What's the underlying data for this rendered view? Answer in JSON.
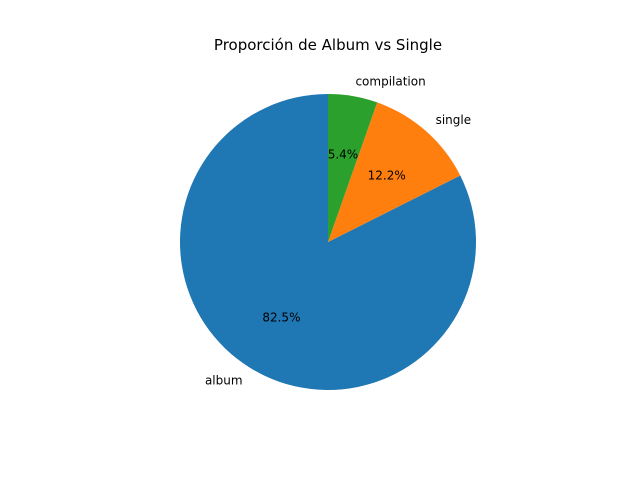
{
  "chart_data": {
    "type": "pie",
    "title": "Proporción de Album vs Single",
    "start_angle": 90,
    "direction": "counterclockwise",
    "slices": [
      {
        "label": "album",
        "value": 82.5,
        "pct_label": "82.5%",
        "color": "#1f77b4"
      },
      {
        "label": "single",
        "value": 12.2,
        "pct_label": "12.2%",
        "color": "#ff7f0e"
      },
      {
        "label": "compilation",
        "value": 5.4,
        "pct_label": "5.4%",
        "color": "#2ca02c"
      }
    ]
  }
}
